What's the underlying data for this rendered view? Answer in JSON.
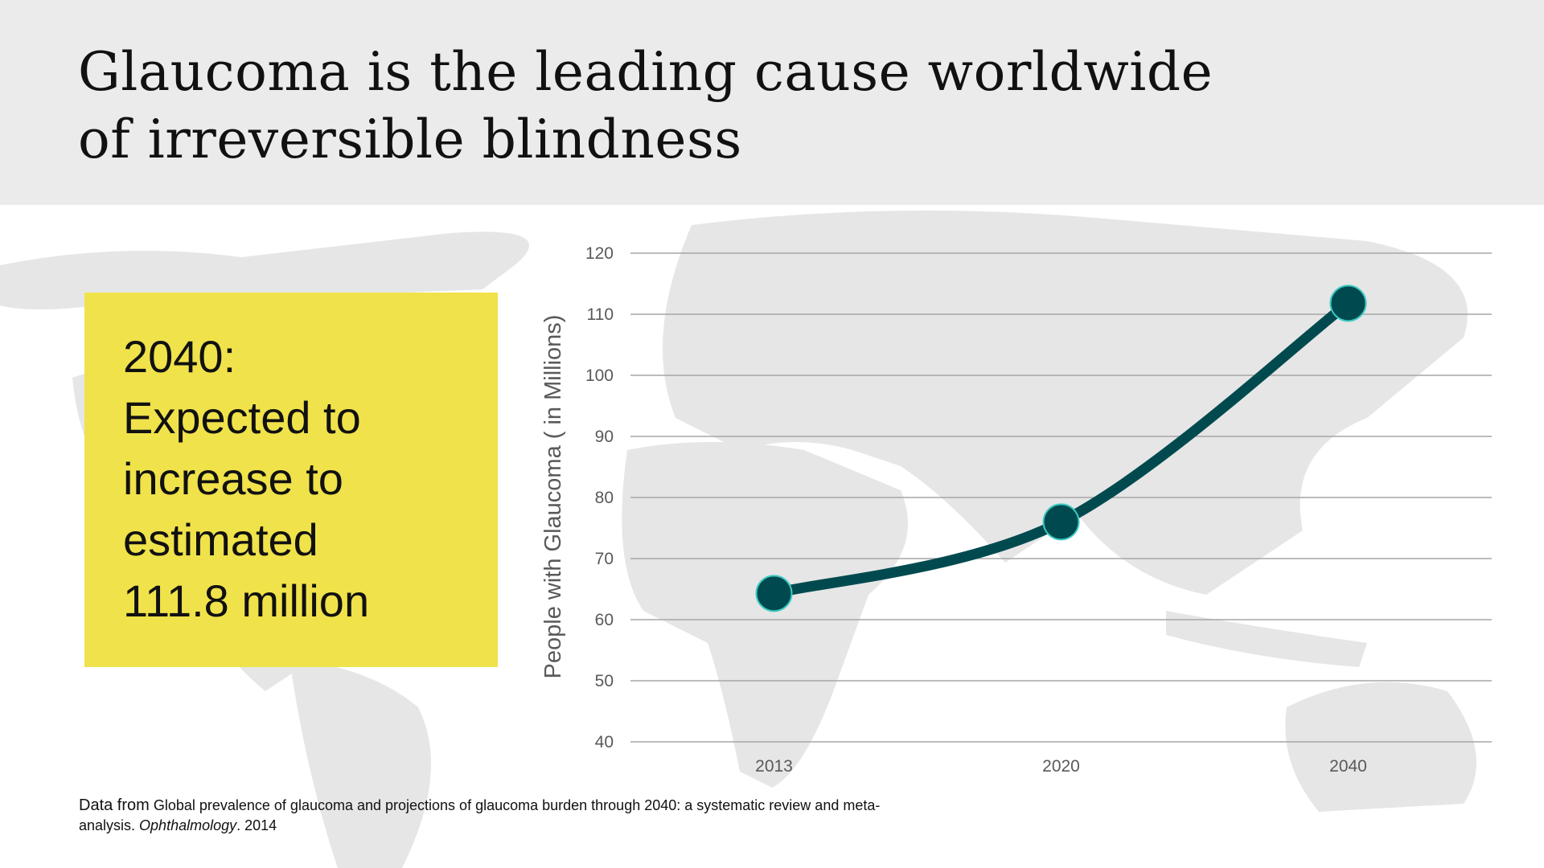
{
  "title": {
    "line1": "Glaucoma is the leading cause worldwide",
    "line2": "of irreversible blindness"
  },
  "callout": {
    "year": "2040:",
    "line1": "Expected to",
    "line2": "increase to",
    "line3": "estimated",
    "line4": "111.8 million"
  },
  "footer": {
    "lead": "Data from",
    "text": "Global prevalence of glaucoma and projections of glaucoma burden through 2040: a systematic review and meta-analysis.",
    "journal": "Ophthalmology",
    "year": ". 2014"
  },
  "colors": {
    "line": "#004a4f",
    "marker_edge": "#3cc9c0",
    "grid": "#a6a6a6",
    "callout": "#f0e24a"
  },
  "chart_data": {
    "type": "line",
    "title": "",
    "xlabel": "",
    "ylabel": "People with Glaucoma ( in Millions)",
    "categories": [
      "2013",
      "2020",
      "2040"
    ],
    "series": [
      {
        "name": "People with Glaucoma",
        "values": [
          64.3,
          76.0,
          111.8
        ]
      }
    ],
    "ylim": [
      40,
      120
    ],
    "yticks": [
      40,
      50,
      60,
      70,
      80,
      90,
      100,
      110,
      120
    ],
    "grid": true,
    "smooth": true
  }
}
